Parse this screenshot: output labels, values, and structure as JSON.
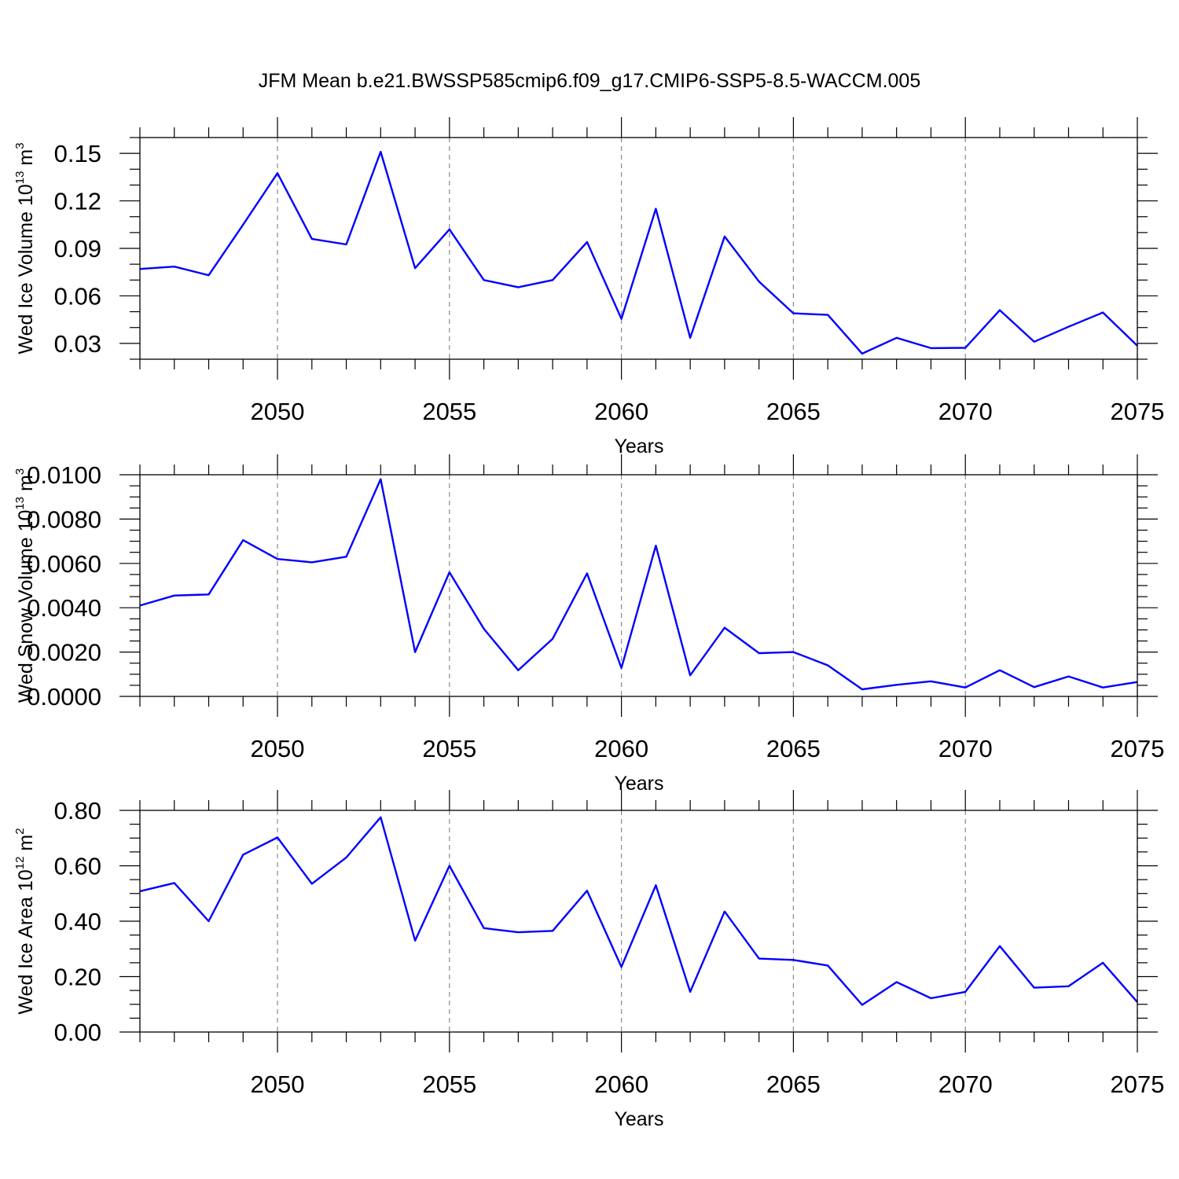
{
  "title": "JFM Mean b.e21.BWSSP585cmip6.f09_g17.CMIP6-SSP5-8.5-WACCM.005",
  "line_color": "#0000ff",
  "chart_data": [
    {
      "type": "line",
      "ylabel": "Wed Ice Volume 10",
      "ylabel_exp": "13",
      "ylabel_unit": " m",
      "ylabel_unit_exp": "3",
      "xlabel": "Years",
      "xlim": [
        2046,
        2075
      ],
      "ylim": [
        0.02,
        0.16
      ],
      "xticks": [
        2050,
        2055,
        2060,
        2065,
        2070,
        2075
      ],
      "yticks": [
        0.03,
        0.06,
        0.09,
        0.12,
        0.15
      ],
      "ytick_labels": [
        "0.03",
        "0.06",
        "0.09",
        "0.12",
        "0.15"
      ],
      "y_minor_step": 0.01,
      "x": [
        2046,
        2047,
        2048,
        2049,
        2050,
        2051,
        2052,
        2053,
        2054,
        2055,
        2056,
        2057,
        2058,
        2059,
        2060,
        2061,
        2062,
        2063,
        2064,
        2065,
        2066,
        2067,
        2068,
        2069,
        2070,
        2071,
        2072,
        2073,
        2074,
        2075
      ],
      "values": [
        0.077,
        0.0785,
        0.073,
        0.105,
        0.1375,
        0.096,
        0.0925,
        0.151,
        0.0775,
        0.102,
        0.07,
        0.0655,
        0.07,
        0.094,
        0.0455,
        0.115,
        0.0335,
        0.0975,
        0.069,
        0.049,
        0.048,
        0.0235,
        0.0335,
        0.027,
        0.0272,
        0.051,
        0.031,
        0.0405,
        0.0495,
        0.0285
      ]
    },
    {
      "type": "line",
      "ylabel": "Wed Snow Volume 10",
      "ylabel_exp": "13",
      "ylabel_unit": " m",
      "ylabel_unit_exp": "3",
      "xlabel": "Years",
      "xlim": [
        2046,
        2075
      ],
      "ylim": [
        0.0,
        0.01
      ],
      "xticks": [
        2050,
        2055,
        2060,
        2065,
        2070,
        2075
      ],
      "yticks": [
        0.0,
        0.002,
        0.004,
        0.006,
        0.008,
        0.01
      ],
      "ytick_labels": [
        "0.0000",
        "0.0020",
        "0.0040",
        "0.0060",
        "0.0080",
        "0.0100"
      ],
      "y_minor_step": 0.0005,
      "x": [
        2046,
        2047,
        2048,
        2049,
        2050,
        2051,
        2052,
        2053,
        2054,
        2055,
        2056,
        2057,
        2058,
        2059,
        2060,
        2061,
        2062,
        2063,
        2064,
        2065,
        2066,
        2067,
        2068,
        2069,
        2070,
        2071,
        2072,
        2073,
        2074,
        2075
      ],
      "values": [
        0.0041,
        0.00455,
        0.0046,
        0.00705,
        0.0062,
        0.00605,
        0.0063,
        0.0098,
        0.002,
        0.0056,
        0.00305,
        0.00118,
        0.0026,
        0.00555,
        0.00128,
        0.0068,
        0.00095,
        0.0031,
        0.00195,
        0.002,
        0.0014,
        0.00032,
        0.00052,
        0.00068,
        0.0004,
        0.00118,
        0.00042,
        0.0009,
        0.0004,
        0.00065
      ]
    },
    {
      "type": "line",
      "ylabel": "Wed Ice Area 10",
      "ylabel_exp": "12",
      "ylabel_unit": " m",
      "ylabel_unit_exp": "2",
      "xlabel": "Years",
      "xlim": [
        2046,
        2075
      ],
      "ylim": [
        0.0,
        0.8
      ],
      "xticks": [
        2050,
        2055,
        2060,
        2065,
        2070,
        2075
      ],
      "yticks": [
        0.0,
        0.2,
        0.4,
        0.6,
        0.8
      ],
      "ytick_labels": [
        "0.00",
        "0.20",
        "0.40",
        "0.60",
        "0.80"
      ],
      "y_minor_step": 0.05,
      "x": [
        2046,
        2047,
        2048,
        2049,
        2050,
        2051,
        2052,
        2053,
        2054,
        2055,
        2056,
        2057,
        2058,
        2059,
        2060,
        2061,
        2062,
        2063,
        2064,
        2065,
        2066,
        2067,
        2068,
        2069,
        2070,
        2071,
        2072,
        2073,
        2074,
        2075
      ],
      "values": [
        0.508,
        0.538,
        0.4,
        0.64,
        0.702,
        0.535,
        0.63,
        0.775,
        0.33,
        0.6,
        0.375,
        0.36,
        0.365,
        0.51,
        0.235,
        0.53,
        0.145,
        0.435,
        0.265,
        0.26,
        0.24,
        0.098,
        0.18,
        0.122,
        0.145,
        0.31,
        0.16,
        0.165,
        0.25,
        0.108
      ]
    }
  ]
}
